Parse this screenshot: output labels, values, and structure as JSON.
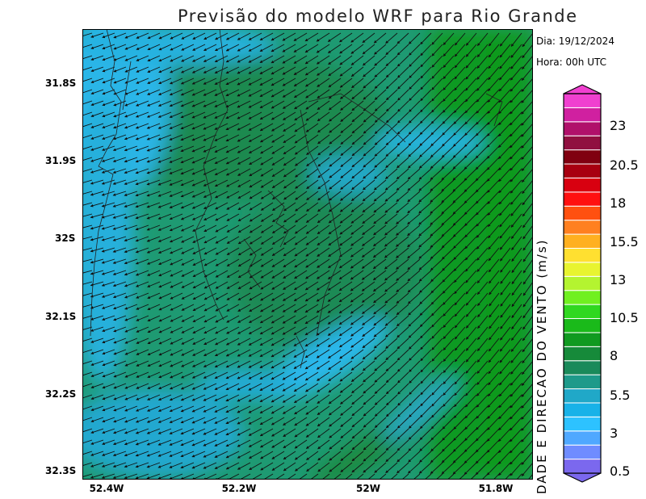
{
  "title": "Previsão do modelo WRF para Rio Grande",
  "info": {
    "date": "Dia: 19/12/2024",
    "hour": "Hora: 00h UTC"
  },
  "axes": {
    "y_ticks": [
      "31.8S",
      "31.9S",
      "32S",
      "32.1S",
      "32.2S",
      "32.3S"
    ],
    "x_ticks": [
      "52.4W",
      "52.2W",
      "52W",
      "51.8W"
    ]
  },
  "colorbar": {
    "title": "DADE E DIRECAO DO VENTO (m/s)",
    "labels": [
      "23",
      "20.5",
      "18",
      "15.5",
      "13",
      "10.5",
      "8",
      "5.5",
      "3",
      "0.5"
    ],
    "min": 0.5,
    "max": 25,
    "colors": [
      "#7b68ee",
      "#6f8cff",
      "#4fa8ff",
      "#2dc2ff",
      "#18b2e8",
      "#20a8c8",
      "#1e9a8a",
      "#1a8a5a",
      "#168a3a",
      "#109a20",
      "#1aba1a",
      "#30d820",
      "#70f020",
      "#b4f430",
      "#e8f430",
      "#ffe030",
      "#ffb020",
      "#ff8020",
      "#ff5010",
      "#ff1010",
      "#d80010",
      "#a80010",
      "#800010",
      "#901040",
      "#b0106a",
      "#d020a0",
      "#f040d0"
    ]
  }
}
